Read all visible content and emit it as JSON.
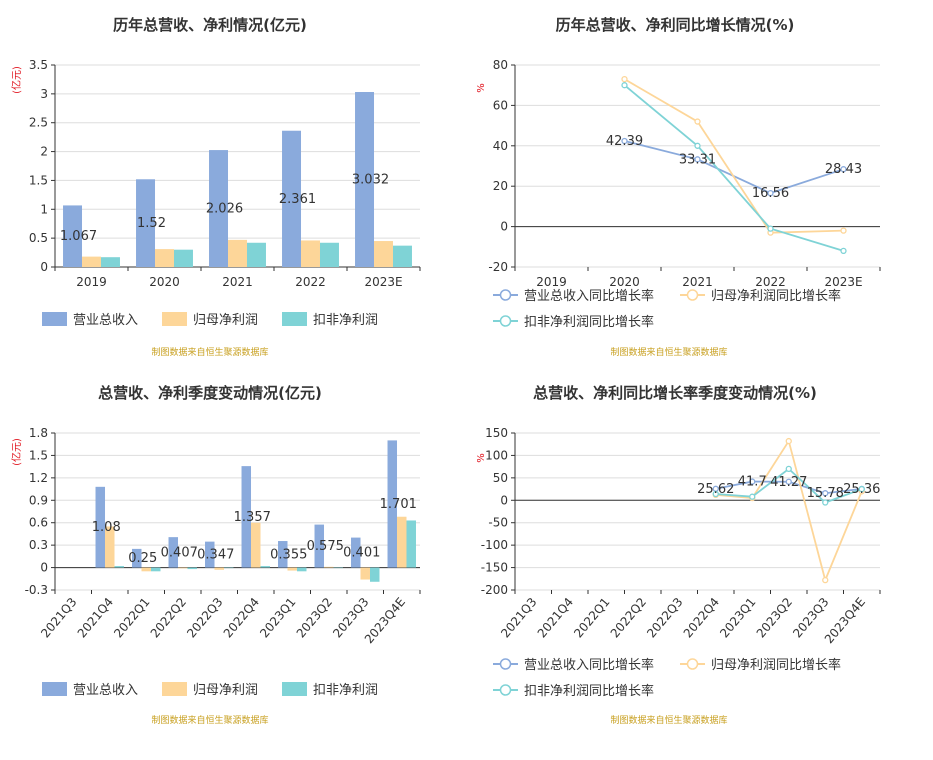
{
  "colors": {
    "revenue": "#8aaadc",
    "net_profit": "#fdd699",
    "deducted_profit": "#7fd3d6",
    "axis": "#333333",
    "grid": "#dddddd",
    "unit": "#e0141e",
    "source": "#c8a020"
  },
  "source_note": "制图数据来自恒生聚源数据库",
  "chart_data": [
    {
      "type": "bar",
      "title": "历年总营收、净利情况(亿元)",
      "unit": "(亿元)",
      "categories": [
        "2019",
        "2020",
        "2021",
        "2022",
        "2023E"
      ],
      "ylim": [
        0,
        3.5
      ],
      "yticks": [
        "0",
        "0.5",
        "1",
        "1.5",
        "2",
        "2.5",
        "3",
        "3.5"
      ],
      "grid": true,
      "legend_position": "bottom-left",
      "series": [
        {
          "name": "营业总收入",
          "values": [
            1.067,
            1.52,
            2.026,
            2.361,
            3.032
          ],
          "labels": [
            "1.067",
            "1.52",
            "2.026",
            "2.361",
            "3.032"
          ]
        },
        {
          "name": "归母净利润",
          "values": [
            0.18,
            0.31,
            0.47,
            0.46,
            0.45
          ]
        },
        {
          "name": "扣非净利润",
          "values": [
            0.17,
            0.3,
            0.42,
            0.42,
            0.37
          ]
        }
      ]
    },
    {
      "type": "line",
      "title": "历年总营收、净利同比增长情况(%)",
      "unit": "%",
      "categories": [
        "2019",
        "2020",
        "2021",
        "2022",
        "2023E"
      ],
      "ylim": [
        -20,
        80
      ],
      "yticks": [
        "-20",
        "0",
        "20",
        "40",
        "60",
        "80"
      ],
      "grid": true,
      "legend_position": "bottom-left",
      "series": [
        {
          "name": "营业总收入同比增长率",
          "values": [
            null,
            42.39,
            33.31,
            16.56,
            28.43
          ],
          "labels": [
            "",
            "42.39",
            "33.31",
            "16.56",
            "28.43"
          ]
        },
        {
          "name": "归母净利润同比增长率",
          "values": [
            null,
            73,
            52,
            -3,
            -2
          ]
        },
        {
          "name": "扣非净利润同比增长率",
          "values": [
            null,
            70,
            40,
            -1,
            -12
          ]
        }
      ]
    },
    {
      "type": "bar",
      "title": "总营收、净利季度变动情况(亿元)",
      "unit": "(亿元)",
      "categories": [
        "2021Q3",
        "2021Q4",
        "2022Q1",
        "2022Q2",
        "2022Q3",
        "2022Q4",
        "2023Q1",
        "2023Q2",
        "2023Q3",
        "2023Q4E"
      ],
      "ylim": [
        -0.3,
        1.8
      ],
      "yticks": [
        "-0.3",
        "0",
        "0.3",
        "0.6",
        "0.9",
        "1.2",
        "1.5",
        "1.8"
      ],
      "grid": true,
      "legend_position": "bottom-left",
      "series": [
        {
          "name": "营业总收入",
          "values": [
            null,
            1.08,
            0.25,
            0.407,
            0.347,
            1.357,
            0.355,
            0.575,
            0.401,
            1.701
          ],
          "labels": [
            "",
            "1.08",
            "0.25",
            "0.407",
            "0.347",
            "1.357",
            "0.355",
            "0.575",
            "0.401",
            "1.701"
          ]
        },
        {
          "name": "归母净利润",
          "values": [
            null,
            0.55,
            -0.05,
            -0.01,
            -0.03,
            0.6,
            -0.04,
            0.01,
            -0.16,
            0.68
          ]
        },
        {
          "name": "扣非净利润",
          "values": [
            null,
            0.02,
            -0.05,
            -0.02,
            0.0,
            0.02,
            -0.05,
            0.0,
            -0.19,
            0.63
          ]
        }
      ]
    },
    {
      "type": "line",
      "title": "总营收、净利同比增长率季度变动情况(%)",
      "unit": "%",
      "categories": [
        "2021Q3",
        "2021Q4",
        "2022Q1",
        "2022Q2",
        "2022Q3",
        "2022Q4",
        "2023Q1",
        "2023Q2",
        "2023Q3",
        "2023Q4E"
      ],
      "ylim": [
        -200,
        150
      ],
      "yticks": [
        "-200",
        "-150",
        "-100",
        "-50",
        "0",
        "50",
        "100",
        "150"
      ],
      "grid": true,
      "legend_position": "bottom-left",
      "series": [
        {
          "name": "营业总收入同比增长率",
          "values": [
            null,
            null,
            null,
            null,
            null,
            25.62,
            41.7,
            41.27,
            15.78,
            25.36
          ],
          "labels": [
            "",
            "",
            "",
            "",
            "",
            "25.62",
            "41.7",
            "41.27",
            "15.78",
            "25.36"
          ]
        },
        {
          "name": "归母净利润同比增长率",
          "values": [
            null,
            null,
            null,
            null,
            null,
            12,
            5,
            132,
            -178,
            20
          ]
        },
        {
          "name": "扣非净利润同比增长率",
          "values": [
            null,
            null,
            null,
            null,
            null,
            14,
            8,
            70,
            -5,
            25
          ]
        }
      ]
    }
  ]
}
